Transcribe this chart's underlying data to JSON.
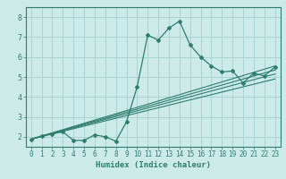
{
  "title": "",
  "xlabel": "Humidex (Indice chaleur)",
  "bg_color": "#cceae8",
  "grid_color": "#aad4d0",
  "line_color": "#2e7d6e",
  "spine_color": "#2e7d6e",
  "xlim": [
    -0.5,
    23.5
  ],
  "ylim": [
    1.5,
    8.5
  ],
  "xticks": [
    0,
    1,
    2,
    3,
    4,
    5,
    6,
    7,
    8,
    9,
    10,
    11,
    12,
    13,
    14,
    15,
    16,
    17,
    18,
    19,
    20,
    21,
    22,
    23
  ],
  "yticks": [
    2,
    3,
    4,
    5,
    6,
    7,
    8
  ],
  "main_line_x": [
    0,
    1,
    2,
    3,
    4,
    5,
    6,
    7,
    8,
    9,
    10,
    11,
    12,
    13,
    14,
    15,
    16,
    17,
    18,
    19,
    20,
    21,
    22,
    23
  ],
  "main_line_y": [
    1.88,
    2.05,
    2.15,
    2.25,
    1.82,
    1.82,
    2.1,
    2.0,
    1.78,
    2.75,
    4.5,
    7.1,
    6.85,
    7.45,
    7.8,
    6.6,
    6.0,
    5.55,
    5.25,
    5.3,
    4.7,
    5.2,
    5.05,
    5.5
  ],
  "reg_lines": [
    {
      "x": [
        0,
        23
      ],
      "y": [
        1.88,
        5.55
      ]
    },
    {
      "x": [
        0,
        23
      ],
      "y": [
        1.88,
        5.15
      ]
    },
    {
      "x": [
        0,
        23
      ],
      "y": [
        1.88,
        4.9
      ]
    },
    {
      "x": [
        0,
        23
      ],
      "y": [
        1.88,
        5.35
      ]
    }
  ],
  "tick_fontsize": 5.5,
  "xlabel_fontsize": 6.5
}
